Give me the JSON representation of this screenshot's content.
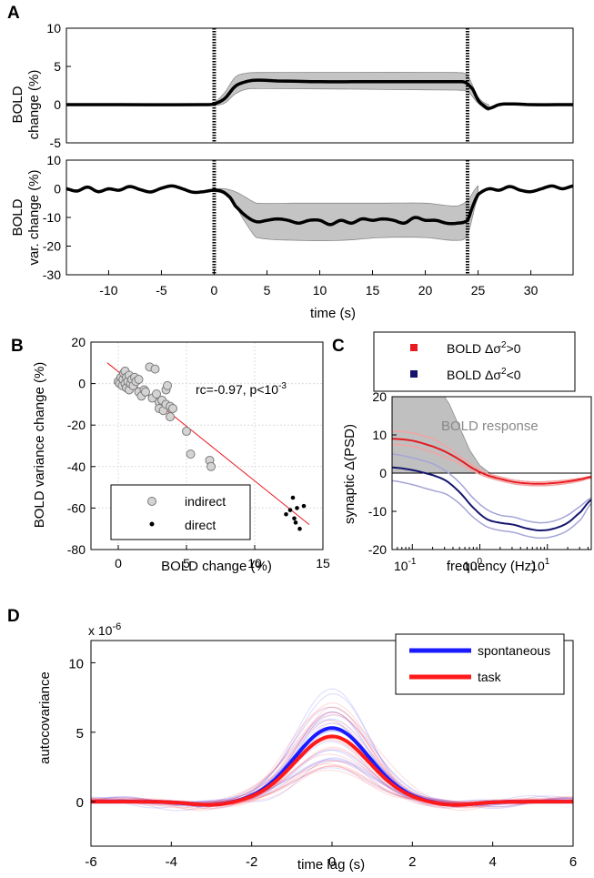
{
  "chart_data": [
    {
      "panel": "A",
      "type": "line",
      "subplots": [
        {
          "ylabel": [
            "BOLD",
            "change (%)"
          ],
          "ylim": [
            -5,
            10
          ],
          "yticks": [
            "10",
            "5",
            "0",
            "-5"
          ],
          "mean": {
            "t": [
              -14,
              -1,
              0,
              1,
              2,
              3,
              4,
              6,
              10,
              15,
              20,
              23,
              23.8,
              24.5,
              25,
              25.5,
              26,
              27,
              28,
              30,
              34
            ],
            "y": [
              0,
              0,
              0.1,
              0.8,
              2.4,
              3.0,
              3.2,
              3.1,
              3.0,
              3.0,
              3.0,
              3.0,
              2.9,
              2.0,
              0.6,
              -0.1,
              -0.5,
              0,
              0.1,
              0,
              0
            ]
          },
          "band": {
            "t": [
              0,
              1,
              2,
              3,
              4,
              23,
              24,
              25,
              26
            ],
            "upper": [
              0.3,
              1.6,
              3.6,
              4.1,
              4.2,
              4.2,
              3.8,
              1.0,
              0
            ],
            "lower": [
              -0.1,
              0.2,
              1.4,
              2.0,
              2.1,
              1.9,
              1.7,
              0.2,
              -0.8
            ]
          }
        },
        {
          "ylabel": [
            "BOLD",
            "var. change (%)"
          ],
          "ylim": [
            -30,
            10
          ],
          "yticks": [
            "10",
            "0",
            "-10",
            "-20",
            "-30"
          ],
          "mean": {
            "t": [
              -14,
              -13,
              -12,
              -11,
              -10,
              -9,
              -8,
              -7,
              -6,
              -5,
              -4,
              -3,
              -2,
              -1,
              0,
              0.8,
              1.5,
              2,
              3,
              4,
              5,
              6,
              7,
              8,
              9,
              10,
              11,
              12,
              13,
              14,
              15,
              16,
              17,
              18,
              19,
              20,
              21,
              22,
              23,
              24,
              24.5,
              25,
              26,
              27,
              28,
              29,
              30,
              31,
              32,
              33,
              34
            ],
            "y": [
              0,
              -0.8,
              0.6,
              -1.0,
              0,
              -0.5,
              0.8,
              -0.3,
              -1.1,
              0.2,
              1.0,
              0,
              -1.2,
              -1.0,
              -0.5,
              -1.0,
              -3,
              -6,
              -9.5,
              -11.5,
              -11,
              -10.5,
              -11,
              -12,
              -11,
              -11,
              -12.5,
              -11,
              -12,
              -10.5,
              -11,
              -10.5,
              -11,
              -12,
              -10,
              -11,
              -11,
              -12,
              -12,
              -11,
              -6,
              -2,
              0,
              -0.5,
              0.8,
              -0.5,
              -1.0,
              0,
              1.0,
              0,
              1.0
            ]
          },
          "band": {
            "t": [
              0,
              1,
              2,
              3,
              4,
              8,
              12,
              16,
              20,
              23,
              24,
              25
            ],
            "upper": [
              0,
              0,
              -1,
              -3,
              -5,
              -5,
              -5,
              -5,
              -5,
              -6,
              -4,
              1
            ],
            "lower": [
              -1,
              -2,
              -6,
              -12,
              -17,
              -18,
              -18,
              -17,
              -17,
              -18,
              -16,
              -3
            ]
          }
        }
      ],
      "xlim": [
        -14,
        34
      ],
      "xticks": [
        "-10",
        "-5",
        "0",
        "5",
        "10",
        "15",
        "20",
        "25",
        "30"
      ],
      "xlabel": "time (s)",
      "stim_markers": [
        0,
        24
      ]
    },
    {
      "panel": "B",
      "type": "scatter",
      "xlabel": "BOLD change (%)",
      "ylabel": "BOLD variance change (%)",
      "xlim": [
        -2,
        15
      ],
      "ylim": [
        -80,
        20
      ],
      "xticks": [
        "0",
        "5",
        "10",
        "15"
      ],
      "yticks": [
        "20",
        "0",
        "-20",
        "-40",
        "-60",
        "-80"
      ],
      "annotation": "rc=-0.97,  p<10",
      "annotation_exp": "-3",
      "legend": [
        "indirect",
        "direct"
      ],
      "fit_line": {
        "x": [
          -0.8,
          14
        ],
        "y": [
          10,
          -68
        ]
      },
      "series": [
        {
          "name": "indirect",
          "x": [
            0,
            0.1,
            0.2,
            0.3,
            0.35,
            0.4,
            0.5,
            0.5,
            0.6,
            0.6,
            0.7,
            0.8,
            0.8,
            0.9,
            1.0,
            1.1,
            1.2,
            1.3,
            1.5,
            1.5,
            1.7,
            1.9,
            2.0,
            2.3,
            2.5,
            2.7,
            2.8,
            3.0,
            3.0,
            3.2,
            3.3,
            3.5,
            3.5,
            3.6,
            3.8,
            3.8,
            4.0,
            5.0,
            5.3,
            6.7,
            6.8
          ],
          "y": [
            1,
            0,
            3,
            -1,
            2,
            5,
            0,
            6,
            3,
            -2,
            1,
            4,
            -3,
            0,
            2,
            -1,
            3,
            1,
            -4,
            2,
            -6,
            -3,
            -4,
            8,
            -7,
            7,
            -5,
            -9,
            -12,
            -8,
            -13,
            -3,
            -10,
            -1,
            -11,
            -16,
            -12,
            -23,
            -34,
            -37,
            -40
          ]
        },
        {
          "name": "direct",
          "x": [
            12.3,
            12.6,
            12.8,
            12.9,
            13.0,
            13.1,
            13.3,
            13.6
          ],
          "y": [
            -63,
            -61,
            -55,
            -65,
            -67,
            -60,
            -70,
            -59
          ]
        }
      ]
    },
    {
      "panel": "C",
      "type": "line",
      "xlabel": "frequency (Hz)",
      "ylabel": "synaptic Δ(PSD)",
      "xlim_log10": [
        -1.3,
        1.65
      ],
      "ylim": [
        -20,
        20
      ],
      "xticks": [
        {
          "base": "10",
          "exp": "-1"
        },
        {
          "base": "10",
          "exp": "0"
        },
        {
          "base": "10",
          "exp": "1"
        }
      ],
      "yticks": [
        "20",
        "10",
        "0",
        "-10",
        "-20"
      ],
      "bold_response_label": "BOLD response",
      "bold_response": {
        "log_f": [
          -1.3,
          -0.8,
          -0.6,
          -0.45,
          -0.3,
          -0.15,
          0.0,
          0.15
        ],
        "y": [
          24,
          24,
          22,
          18,
          12,
          6,
          2,
          0
        ]
      },
      "legend": [
        {
          "label": "BOLD Δσ",
          "exp": "2",
          "cmp": ">0",
          "color": "#e8191f"
        },
        {
          "label": "BOLD Δσ",
          "exp": "2",
          "cmp": "<0",
          "color": "#14146e"
        }
      ],
      "series": [
        {
          "name": "positive",
          "color": "#e8191f",
          "log_f": [
            -1.3,
            -1.0,
            -0.7,
            -0.5,
            -0.3,
            -0.1,
            0.1,
            0.3,
            0.5,
            0.7,
            0.9,
            1.1,
            1.3,
            1.5,
            1.65
          ],
          "mean": [
            9,
            8.5,
            7,
            5.5,
            3.5,
            1.2,
            -0.5,
            -1.5,
            -2.3,
            -2.7,
            -2.8,
            -2.6,
            -2.2,
            -1.6,
            -1.0
          ],
          "upper": [
            11,
            10.5,
            9,
            7,
            4.5,
            2,
            0,
            -1,
            -1.8,
            -2.2,
            -2.3,
            -2.1,
            -1.8,
            -1.3,
            -0.8
          ],
          "lower": [
            7.5,
            7,
            5.5,
            4,
            2.5,
            0.5,
            -1,
            -2,
            -2.8,
            -3.2,
            -3.3,
            -3.1,
            -2.7,
            -2,
            -1.3
          ]
        },
        {
          "name": "negative",
          "color": "#14146e",
          "log_f": [
            -1.3,
            -1.0,
            -0.7,
            -0.5,
            -0.3,
            -0.1,
            0.1,
            0.3,
            0.5,
            0.7,
            0.9,
            1.1,
            1.3,
            1.5,
            1.65
          ],
          "mean": [
            1.5,
            0.8,
            -0.5,
            -2,
            -5,
            -9,
            -12,
            -13,
            -13.5,
            -14.5,
            -15,
            -14.5,
            -13,
            -10,
            -7
          ],
          "upper": [
            5,
            4,
            2.5,
            0.5,
            -2.5,
            -6.5,
            -9.5,
            -11,
            -11.5,
            -12.5,
            -13,
            -12.5,
            -11,
            -8.5,
            -6.5
          ],
          "lower": [
            -2,
            -3,
            -4.5,
            -5.5,
            -8,
            -11.5,
            -14,
            -15,
            -15.5,
            -16.5,
            -17,
            -16.5,
            -15,
            -12,
            -8
          ]
        }
      ]
    },
    {
      "panel": "D",
      "type": "line",
      "xlabel": "time lag (s)",
      "ylabel": "autocovariance",
      "scale_label": "x 10",
      "scale_exp": "-6",
      "xlim": [
        -6,
        6
      ],
      "ylim": [
        -3.2,
        11.6
      ],
      "xticks": [
        "-6",
        "-4",
        "-2",
        "0",
        "2",
        "4",
        "6"
      ],
      "yticks": [
        "10",
        "5",
        "0"
      ],
      "legend": [
        {
          "label": "spontaneous",
          "color": "#1a1aff"
        },
        {
          "label": "task",
          "color": "#ff1a1a"
        }
      ],
      "series": [
        {
          "name": "spontaneous",
          "peak": 5.3,
          "color": "#1a1aff"
        },
        {
          "name": "task",
          "peak": 4.7,
          "color": "#ff1a1a"
        }
      ],
      "faint_traces_per_series": 22
    }
  ],
  "panel_labels": [
    "A",
    "B",
    "C",
    "D"
  ]
}
